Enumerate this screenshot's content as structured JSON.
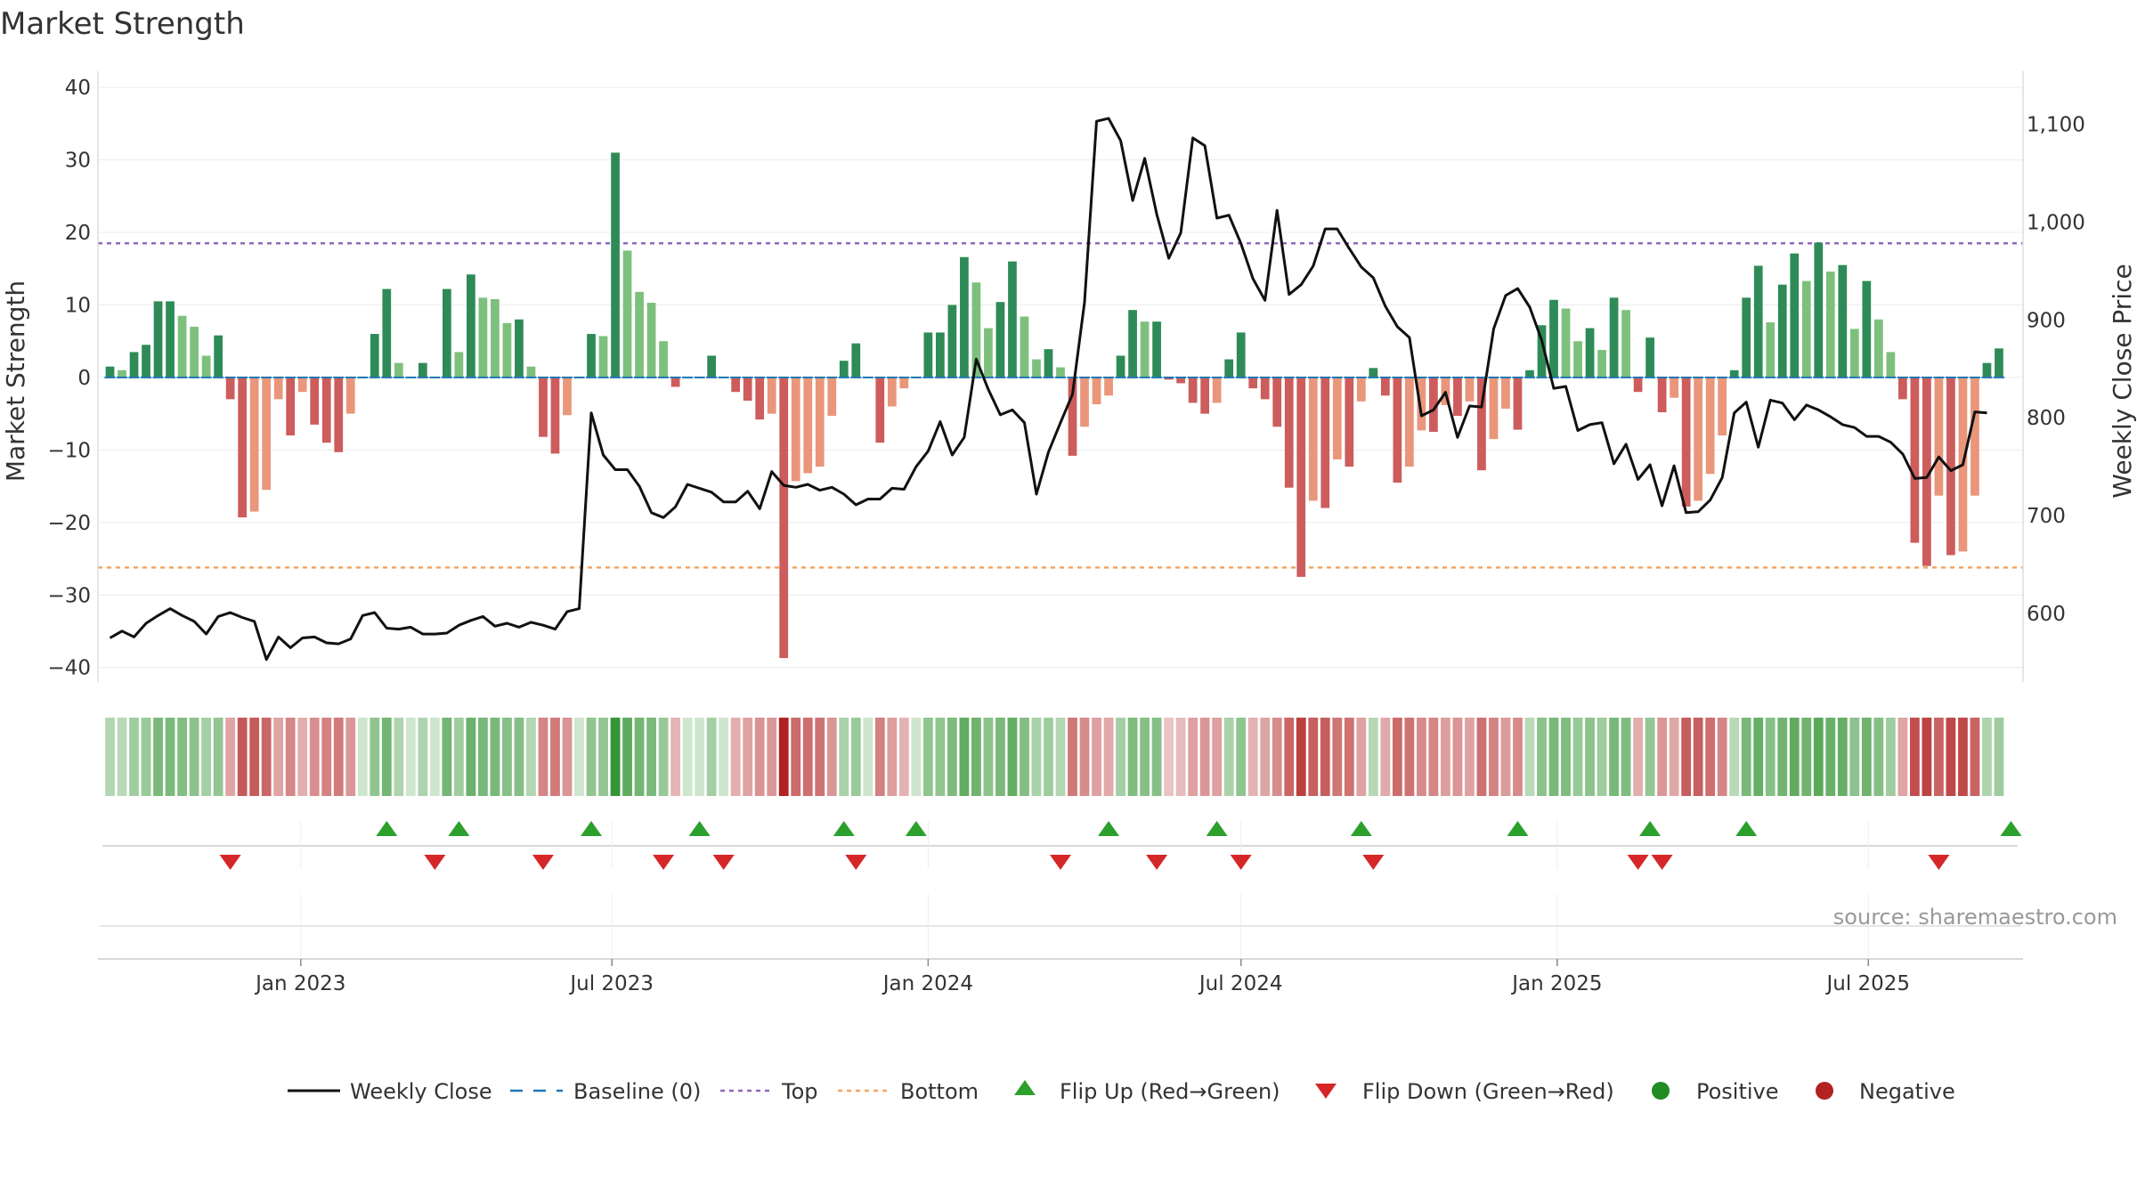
{
  "chart_data": {
    "type": "bar",
    "title": "Market Strength",
    "source": "source: sharemaestro.com",
    "ylabel_left": "Market Strength",
    "ylabel_right": "Weekly Close Price",
    "ylim_left": [
      -42,
      41
    ],
    "ylim_right": [
      530,
      1145
    ],
    "yticks_left": [
      40,
      30,
      20,
      10,
      0,
      -10,
      -20,
      -30,
      -40
    ],
    "yticks_right": [
      600,
      700,
      800,
      900,
      1000,
      1100
    ],
    "ytick_labels_left": [
      "40",
      "30",
      "20",
      "10",
      "0",
      "−10",
      "−20",
      "−30",
      "−40"
    ],
    "ytick_labels_right": [
      "600",
      "700",
      "800",
      "900",
      "1,000",
      "1,100"
    ],
    "x_start": "2022-09-12",
    "x_step_days": 7,
    "x_range": [
      "2022-09-05",
      "2025-09-29"
    ],
    "x_ticks": [
      {
        "date": "2023-01-01",
        "label": "Jan 2023"
      },
      {
        "date": "2023-07-01",
        "label": "Jul 2023"
      },
      {
        "date": "2024-01-01",
        "label": "Jan 2024"
      },
      {
        "date": "2024-07-01",
        "label": "Jul 2024"
      },
      {
        "date": "2025-01-01",
        "label": "Jan 2025"
      },
      {
        "date": "2025-07-01",
        "label": "Jul 2025"
      }
    ],
    "top_threshold": 18.5,
    "bottom_threshold": -26.2,
    "strength": [
      1.5,
      1,
      3.5,
      4.5,
      10.5,
      10.5,
      8.5,
      7,
      3,
      5.8,
      -3,
      -19.3,
      -18.5,
      -15.5,
      -3,
      -8,
      -2,
      -6.5,
      -9,
      -10.3,
      -5,
      0,
      6,
      12.2,
      2,
      0,
      2,
      0,
      12.2,
      3.5,
      14.2,
      11,
      10.8,
      7.5,
      8,
      1.5,
      -8.2,
      -10.5,
      -5.2,
      0,
      6,
      5.7,
      31,
      17.5,
      11.8,
      10.3,
      5,
      -1.3,
      0,
      0,
      3,
      0,
      -2,
      -3.2,
      -5.8,
      -5,
      -38.7,
      -14.3,
      -13.2,
      -12.3,
      -5.3,
      2.3,
      4.7,
      0,
      -9,
      -4,
      -1.5,
      0,
      6.2,
      6.2,
      10,
      16.6,
      13.1,
      6.8,
      10.4,
      16,
      8.4,
      2.5,
      3.9,
      1.4,
      -10.8,
      -6.8,
      -3.7,
      -2.5,
      3,
      9.3,
      7.7,
      7.7,
      -0.3,
      -0.8,
      -3.5,
      -5,
      -3.5,
      2.5,
      6.2,
      -1.5,
      -3,
      -6.8,
      -15.2,
      -27.5,
      -17,
      -18,
      -11.3,
      -12.3,
      -3.3,
      1.3,
      -2.5,
      -14.5,
      -12.3,
      -7.3,
      -7.5,
      -3.8,
      -5.3,
      -3.3,
      -12.8,
      -8.5,
      -4.3,
      -7.2,
      1,
      7.2,
      10.7,
      9.5,
      5,
      6.8,
      3.8,
      11,
      9.3,
      -2,
      5.5,
      -4.8,
      -2.8,
      -17.8,
      -17,
      -13.3,
      -8,
      1,
      11,
      15.4,
      7.6,
      12.8,
      17.1,
      13.3,
      18.6,
      14.6,
      15.5,
      6.7,
      13.3,
      8,
      3.5,
      -3,
      -22.8,
      -26,
      -16.3,
      -24.5,
      -24,
      -16.3,
      2,
      4
    ],
    "close": [
      575,
      582,
      576,
      590,
      598,
      605,
      598,
      592,
      579,
      597,
      601,
      596,
      592,
      553,
      576,
      565,
      575,
      576,
      570,
      569,
      574,
      598,
      601,
      585,
      584,
      586,
      579,
      579,
      580,
      588,
      593,
      597,
      587,
      590,
      586,
      591,
      588,
      584,
      602,
      605,
      805,
      762,
      747,
      747,
      730,
      703,
      698,
      709,
      732,
      728,
      724,
      714,
      714,
      725,
      707,
      745,
      731,
      729,
      732,
      726,
      729,
      722,
      711,
      717,
      717,
      728,
      727,
      750,
      766,
      796,
      762,
      780,
      860,
      829,
      803,
      808,
      795,
      722,
      765,
      795,
      824,
      918,
      1103,
      1106,
      1083,
      1022,
      1065,
      1008,
      963,
      989,
      1086,
      1078,
      1004,
      1007,
      978,
      942,
      920,
      1012,
      926,
      936,
      955,
      993,
      993,
      973,
      954,
      943,
      914,
      893,
      882,
      802,
      808,
      826,
      780,
      812,
      811,
      891,
      925,
      932,
      913,
      879,
      830,
      832,
      787,
      793,
      795,
      753,
      773,
      737,
      752,
      710,
      751,
      703,
      704,
      716,
      739,
      805,
      816,
      770,
      818,
      815,
      798,
      813,
      808,
      801,
      793,
      790,
      781,
      781,
      775,
      763,
      738,
      739,
      760,
      746,
      752,
      806,
      805
    ],
    "flips_up": [
      "2023-02-20",
      "2023-04-03",
      "2023-06-19",
      "2023-08-21",
      "2023-11-13",
      "2023-12-25",
      "2024-04-15",
      "2024-06-17",
      "2024-09-09",
      "2024-12-09",
      "2025-02-24",
      "2025-04-21",
      "2025-09-22"
    ],
    "flips_down": [
      "2022-11-21",
      "2023-03-20",
      "2023-05-22",
      "2023-07-31",
      "2023-09-04",
      "2023-11-20",
      "2024-03-18",
      "2024-05-13",
      "2024-07-01",
      "2024-09-16",
      "2025-02-17",
      "2025-03-03",
      "2025-08-11"
    ],
    "series": [
      {
        "name": "Weekly Close",
        "color": "#111111"
      },
      {
        "name": "Baseline (0)",
        "color": "#1f77b4"
      },
      {
        "name": "Top",
        "color": "#9467bd"
      },
      {
        "name": "Bottom",
        "color": "#f4a460"
      },
      {
        "name": "Flip Up (Red→Green)",
        "color": "#2ca02c"
      },
      {
        "name": "Flip Down (Green→Red)",
        "color": "#d62728"
      },
      {
        "name": "Positive",
        "color": "#228b22"
      },
      {
        "name": "Negative",
        "color": "#b22222"
      }
    ],
    "colors": {
      "bar_strong_pos": "#2e8b57",
      "bar_light_pos": "#7dc07d",
      "bar_strong_neg": "#cd5c5c",
      "bar_light_neg": "#e9967a"
    },
    "legend_position": "bottom",
    "grid": true
  }
}
